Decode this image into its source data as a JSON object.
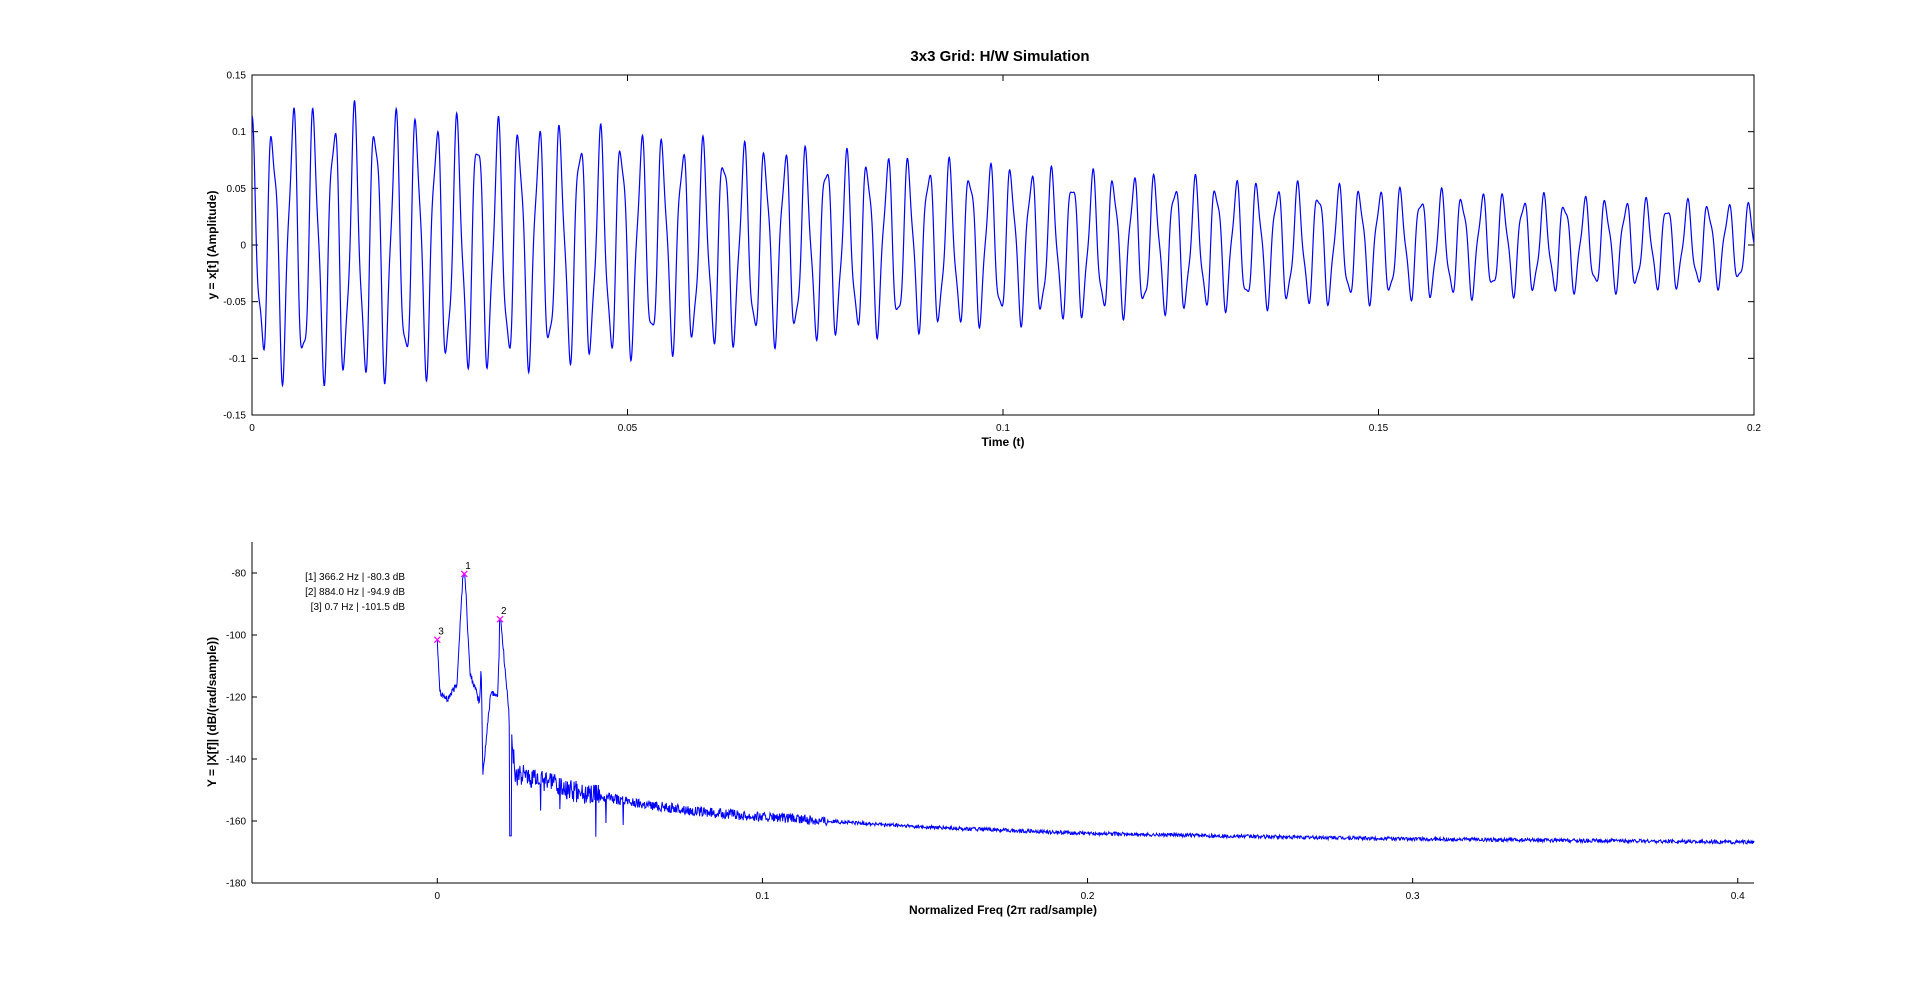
{
  "figure_title": "3x3 Grid: H/W Simulation",
  "chart_data": [
    {
      "type": "line",
      "title": "3x3 Grid: H/W Simulation",
      "xlabel": "Time (t)",
      "ylabel": "y = x[t] (Amplitude)",
      "xlim": [
        0,
        0.2
      ],
      "ylim": [
        -0.15,
        0.15
      ],
      "xticks": [
        "0",
        "0.05",
        "0.1",
        "0.15",
        "0.2"
      ],
      "yticks": [
        "-0.15",
        "-0.1",
        "-0.05",
        "0",
        "0.05",
        "0.1",
        "0.15"
      ],
      "grid": false,
      "box": true,
      "series": [
        {
          "color": "#0000ff",
          "description_values": {
            "peak_x": [
              0.0014,
              0.0056,
              0.0084,
              0.0137,
              0.0191,
              0.0247,
              0.0301,
              0.0355,
              0.0409,
              0.0463,
              0.0517,
              0.0571,
              0.0626,
              0.0678,
              0.0734,
              0.0788,
              0.0842,
              0.0896,
              0.095,
              0.1004,
              0.1058,
              0.1112,
              0.1166,
              0.122,
              0.1274,
              0.1328,
              0.1382,
              0.1436,
              0.149,
              0.1544,
              0.1598,
              0.1652,
              0.1706,
              0.176,
              0.1814,
              0.1868,
              0.1922,
              0.1976
            ],
            "peak_y": [
              0.096,
              0.116,
              0.111,
              0.113,
              0.111,
              0.105,
              0.103,
              0.101,
              0.097,
              0.095,
              0.091,
              0.087,
              0.084,
              0.082,
              0.079,
              0.076,
              0.073,
              0.07,
              0.067,
              0.065,
              0.062,
              0.06,
              0.058,
              0.056,
              0.054,
              0.052,
              0.05,
              0.049,
              0.047,
              0.045,
              0.044,
              0.042,
              0.041,
              0.039,
              0.038,
              0.037,
              0.036,
              0.034
            ]
          }
        }
      ]
    },
    {
      "type": "line",
      "title": "",
      "xlabel": "Normalized Freq (2π rad/sample)",
      "ylabel": "Y = |X[f]| (dB/(rad/sample))",
      "xlim": [
        -0.057,
        0.405
      ],
      "ylim": [
        -180,
        -70
      ],
      "xticks": [
        "0",
        "0.1",
        "0.2",
        "0.3",
        "0.4"
      ],
      "yticks": [
        "-180",
        "-160",
        "-140",
        "-120",
        "-100",
        "-80"
      ],
      "grid": false,
      "box": false,
      "series": [
        {
          "color": "#0000ff",
          "envelope": {
            "x": [
              0,
              0.0008,
              0.003,
              0.006,
              0.0078,
              0.0083,
              0.0087,
              0.01,
              0.013,
              0.0135,
              0.014,
              0.0165,
              0.0185,
              0.0195,
              0.022,
              0.024,
              0.03,
              0.04,
              0.06,
              0.08,
              0.1,
              0.15,
              0.2,
              0.25,
              0.3,
              0.35,
              0.4,
              0.405
            ],
            "y": [
              -101.5,
              -118,
              -121,
              -116,
              -82,
              -80.3,
              -84,
              -112,
              -122,
              -110,
              -145,
              -118,
              -120,
              -94.9,
              -125,
              -145,
              -146,
              -150,
              -154,
              -157,
              -158.7,
              -162,
              -164,
              -165,
              -165.8,
              -166.3,
              -166.8,
              -166.9
            ]
          }
        }
      ],
      "peaks": [
        {
          "marker": "1",
          "x": 0.0083,
          "y": -80.3
        },
        {
          "marker": "2",
          "x": 0.0193,
          "y": -94.9
        },
        {
          "marker": "3",
          "x": 0.0,
          "y": -101.5
        }
      ],
      "peak_marker_color": "#ff00ff",
      "annotations": [
        "[1] 366.2 Hz | -80.3 dB",
        "[2] 884.0 Hz | -94.9 dB",
        "[3] 0.7 Hz | -101.5 dB"
      ]
    }
  ]
}
